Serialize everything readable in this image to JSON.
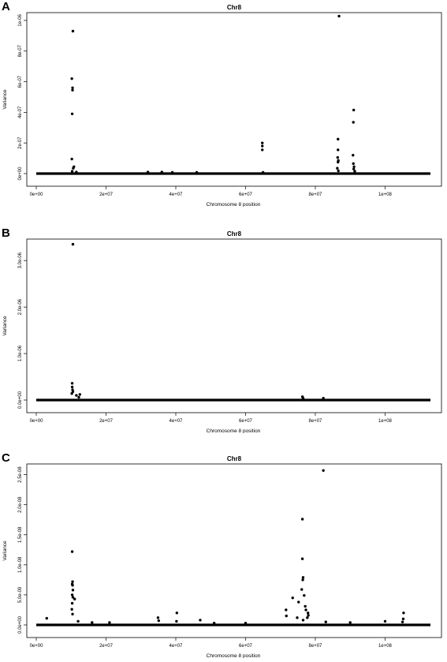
{
  "panels": [
    {
      "letter": "A",
      "chart_data": {
        "type": "scatter",
        "title": "Chr8",
        "xlabel": "Chromosome 8 position",
        "ylabel": "Variance",
        "xlim": [
          0,
          113000000
        ],
        "ylim": [
          0,
          1.02e-06
        ],
        "x_ticks": [
          0,
          20000000,
          40000000,
          60000000,
          80000000,
          100000000
        ],
        "x_tick_labels": [
          "0e+00",
          "2e+07",
          "4e+07",
          "6e+07",
          "8e+07",
          "1e+08"
        ],
        "y_ticks": [
          0,
          2e-07,
          4e-07,
          6e-07,
          8e-07,
          1e-06
        ],
        "y_tick_labels": [
          "0e+00",
          "2e-07",
          "4e-07",
          "6e-07",
          "8e-07",
          "1e-06"
        ],
        "baseline": 0,
        "points": [
          [
            10500000,
            9.3e-07
          ],
          [
            10200000,
            6.2e-07
          ],
          [
            10400000,
            5.6e-07
          ],
          [
            10400000,
            5.45e-07
          ],
          [
            10300000,
            3.9e-07
          ],
          [
            10200000,
            9.5e-08
          ],
          [
            10800000,
            4.5e-08
          ],
          [
            10600000,
            3.5e-08
          ],
          [
            10300000,
            1.5e-08
          ],
          [
            11500000,
            1e-08
          ],
          [
            32000000,
            1e-08
          ],
          [
            36000000,
            1e-08
          ],
          [
            39000000,
            8e-09
          ],
          [
            46000000,
            8e-09
          ],
          [
            64800000,
            2e-07
          ],
          [
            64800000,
            1.8e-07
          ],
          [
            64800000,
            1.55e-07
          ],
          [
            65000000,
            8e-09
          ],
          [
            86800000,
            1.028e-06
          ],
          [
            86500000,
            2.25e-07
          ],
          [
            86500000,
            1.55e-07
          ],
          [
            86400000,
            1.05e-07
          ],
          [
            86600000,
            8.5e-08
          ],
          [
            86500000,
            7.5e-08
          ],
          [
            86300000,
            3.5e-08
          ],
          [
            86600000,
            1.8e-08
          ],
          [
            91000000,
            4.15e-07
          ],
          [
            90900000,
            3.35e-07
          ],
          [
            90800000,
            1.2e-07
          ],
          [
            90900000,
            6.5e-08
          ],
          [
            91100000,
            4.5e-08
          ],
          [
            91000000,
            3e-08
          ],
          [
            91300000,
            1.5e-08
          ]
        ]
      }
    },
    {
      "letter": "B",
      "chart_data": {
        "type": "scatter",
        "title": "Chr8",
        "xlabel": "Chromosome 8 position",
        "ylabel": "Variance",
        "xlim": [
          0,
          113000000
        ],
        "ylim": [
          0,
          3.36e-06
        ],
        "x_ticks": [
          0,
          20000000,
          40000000,
          60000000,
          80000000,
          100000000
        ],
        "x_tick_labels": [
          "0e+00",
          "2e+07",
          "4e+07",
          "6e+07",
          "8e+07",
          "1e+08"
        ],
        "y_ticks": [
          0,
          1e-06,
          2e-06,
          3e-06
        ],
        "y_tick_labels": [
          "0.0e+00",
          "1.0e-06",
          "2.0e-06",
          "3.0e-06"
        ],
        "baseline": 0,
        "points": [
          [
            10500000,
            3.35e-06
          ],
          [
            10300000,
            3.6e-07
          ],
          [
            10300000,
            2.8e-07
          ],
          [
            10400000,
            2.2e-07
          ],
          [
            10500000,
            1.8e-07
          ],
          [
            10200000,
            1.4e-07
          ],
          [
            11500000,
            1e-07
          ],
          [
            12200000,
            6e-08
          ],
          [
            12500000,
            1.2e-07
          ],
          [
            76300000,
            7e-08
          ],
          [
            76500000,
            4e-08
          ],
          [
            82300000,
            4e-08
          ]
        ]
      }
    },
    {
      "letter": "C",
      "chart_data": {
        "type": "scatter",
        "title": "Chr8",
        "xlabel": "Chromosome 8 position",
        "ylabel": "Variance",
        "xlim": [
          0,
          113000000
        ],
        "ylim": [
          0,
          2.6e-08
        ],
        "x_ticks": [
          0,
          20000000,
          40000000,
          60000000,
          80000000,
          100000000
        ],
        "x_tick_labels": [
          "0e+00",
          "2e+07",
          "4e+07",
          "6e+07",
          "8e+07",
          "1e+08"
        ],
        "y_ticks": [
          0,
          5e-09,
          1e-08,
          1.5e-08,
          2e-08,
          2.5e-08
        ],
        "y_tick_labels": [
          "0.0e+00",
          "5.0e-09",
          "1.0e-08",
          "1.5e-08",
          "2.0e-08",
          "2.5e-08"
        ],
        "baseline": 0,
        "points": [
          [
            10300000,
            1.22e-08
          ],
          [
            10400000,
            7.2e-09
          ],
          [
            10300000,
            6.8e-09
          ],
          [
            10400000,
            6.6e-09
          ],
          [
            10500000,
            5.8e-09
          ],
          [
            10300000,
            5e-09
          ],
          [
            11000000,
            4.3e-09
          ],
          [
            10500000,
            4.6e-09
          ],
          [
            10300000,
            3.6e-09
          ],
          [
            10200000,
            2.6e-09
          ],
          [
            10400000,
            1.8e-09
          ],
          [
            3000000,
            1.1e-09
          ],
          [
            12000000,
            6e-10
          ],
          [
            16000000,
            4e-10
          ],
          [
            21000000,
            4e-10
          ],
          [
            34900000,
            1.2e-09
          ],
          [
            35100000,
            7e-10
          ],
          [
            40300000,
            2e-09
          ],
          [
            40200000,
            6e-10
          ],
          [
            47000000,
            8e-10
          ],
          [
            51000000,
            3e-10
          ],
          [
            60000000,
            3e-10
          ],
          [
            71600000,
            2.5e-09
          ],
          [
            71700000,
            1.5e-09
          ],
          [
            73500000,
            4.5e-09
          ],
          [
            75200000,
            3.8e-09
          ],
          [
            74800000,
            1.2e-09
          ],
          [
            76300000,
            1.76e-08
          ],
          [
            76300000,
            1.1e-08
          ],
          [
            76500000,
            7.9e-09
          ],
          [
            76400000,
            7.5e-09
          ],
          [
            76100000,
            5.9e-09
          ],
          [
            76800000,
            4.9e-09
          ],
          [
            77100000,
            3.1e-09
          ],
          [
            77300000,
            2.5e-09
          ],
          [
            77900000,
            2e-09
          ],
          [
            78000000,
            1.6e-09
          ],
          [
            77700000,
            1.2e-09
          ],
          [
            76500000,
            8e-10
          ],
          [
            82300000,
            2.57e-08
          ],
          [
            83000000,
            5e-10
          ],
          [
            90000000,
            4e-10
          ],
          [
            100000000,
            6e-10
          ],
          [
            105300000,
            2e-09
          ],
          [
            105200000,
            1e-09
          ],
          [
            105000000,
            5e-10
          ]
        ]
      }
    }
  ]
}
